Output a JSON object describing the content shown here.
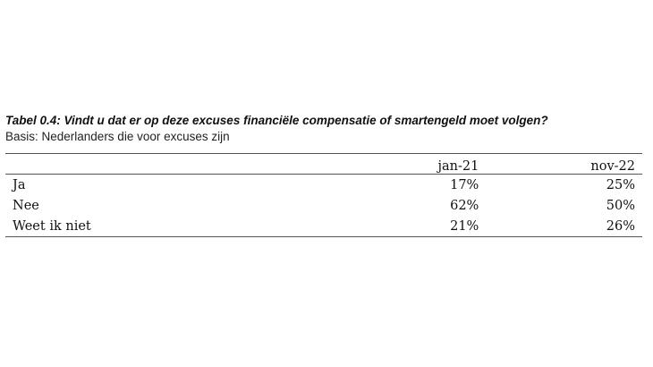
{
  "table": {
    "title": "Tabel 0.4: Vindt u dat er op deze excuses financiële compensatie of smartengeld moet volgen?",
    "subtitle": "Basis: Nederlanders die voor excuses zijn",
    "columns": [
      "",
      "jan-21",
      "nov-22"
    ],
    "rows": [
      {
        "label": "Ja",
        "jan21": "17%",
        "nov22": "25%"
      },
      {
        "label": "Nee",
        "jan21": "62%",
        "nov22": "50%"
      },
      {
        "label": "Weet ik niet",
        "jan21": "21%",
        "nov22": "26%"
      }
    ]
  }
}
